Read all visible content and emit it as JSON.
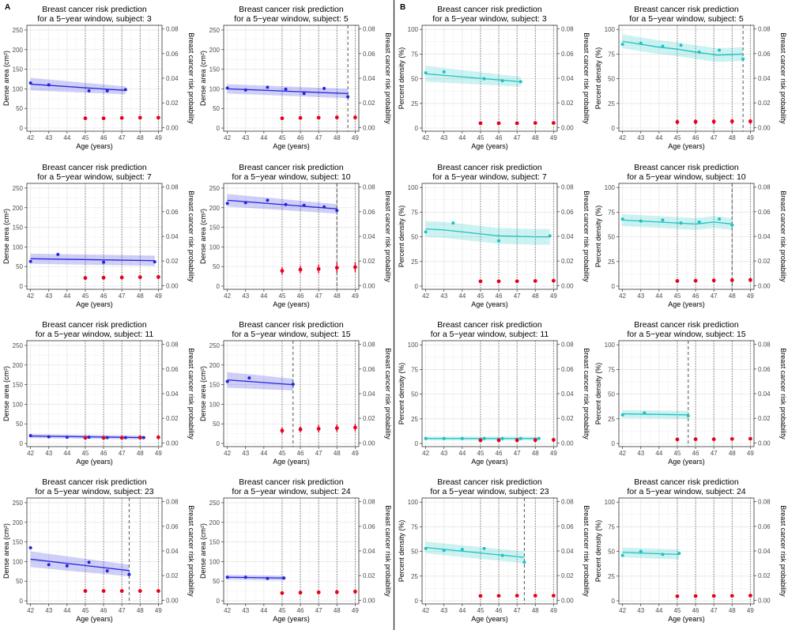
{
  "panels": [
    "A",
    "B"
  ],
  "common": {
    "title_line1": "Breast cancer risk prediction",
    "xlabel": "Age (years)",
    "y2label": "Breast cancer risk probability",
    "xlim": [
      41.8,
      49.2
    ],
    "x_ticks": [
      42,
      43,
      44,
      45,
      46,
      47,
      48,
      49
    ],
    "y2lim": [
      -0.003,
      0.083
    ],
    "y2_ticks": [
      0.0,
      0.02,
      0.04,
      0.06,
      0.08
    ],
    "y2_tick_labels": [
      "0.00",
      "0.02",
      "0.04",
      "0.06",
      "0.08"
    ],
    "colors": {
      "dense": "#2424e0",
      "percent": "#1cc2c2",
      "risk": "#e8001c",
      "vline": "#555555"
    }
  },
  "chart_data": [
    {
      "type": "line",
      "panel": "A",
      "position": "row1-col1",
      "title": "Breast cancer risk prediction\nfor a 5−year window, subject: 3",
      "ylabel": "Dense area (cm²)",
      "ylim": [
        -8,
        262
      ],
      "y_ticks": [
        0,
        50,
        100,
        150,
        200,
        250
      ],
      "x_points": [
        42,
        43,
        45.2,
        46.2,
        47.2
      ],
      "y_points": [
        115,
        110,
        95,
        95,
        98
      ],
      "fit_x": [
        42,
        47.2
      ],
      "fit_y": [
        112,
        96
      ],
      "band_halfwidth": [
        16,
        10
      ],
      "risk_x": [
        45,
        46,
        47,
        48,
        49
      ],
      "risk_y": [
        0.0075,
        0.0075,
        0.0078,
        0.008,
        0.008
      ],
      "risk_err": [
        0.0015,
        0.0015,
        0.0015,
        0.0015,
        0.0015
      ],
      "dotted_lines": [
        45,
        46,
        47,
        48,
        49
      ],
      "dashed_line": null
    },
    {
      "type": "line",
      "panel": "A",
      "position": "row1-col2",
      "title": "Breast cancer risk prediction\nfor a 5−year window, subject: 5",
      "ylabel": "Dense area (cm²)",
      "ylim": [
        -8,
        262
      ],
      "y_ticks": [
        0,
        50,
        100,
        150,
        200,
        250
      ],
      "x_points": [
        42,
        43,
        44.2,
        45.2,
        46.2,
        47.3,
        48.6
      ],
      "y_points": [
        102,
        97,
        104,
        99,
        88,
        101,
        80
      ],
      "fit_x": [
        42,
        48.6
      ],
      "fit_y": [
        100,
        88
      ],
      "band_halfwidth": [
        12,
        12
      ],
      "risk_x": [
        45,
        46,
        47,
        48,
        49
      ],
      "risk_y": [
        0.0075,
        0.0078,
        0.008,
        0.0082,
        0.0082
      ],
      "risk_err": [
        0.0015,
        0.0015,
        0.0015,
        0.0015,
        0.0015
      ],
      "dotted_lines": [
        45,
        46,
        47,
        48,
        49
      ],
      "dashed_line": 48.6
    },
    {
      "type": "line",
      "panel": "A",
      "position": "row2-col1",
      "title": "Breast cancer risk prediction\nfor a 5−year window, subject: 7",
      "ylabel": "Dense area (cm²)",
      "ylim": [
        -8,
        262
      ],
      "y_ticks": [
        0,
        50,
        100,
        150,
        200,
        250
      ],
      "x_points": [
        42,
        43.5,
        46,
        48.8
      ],
      "y_points": [
        63,
        81,
        61,
        62
      ],
      "fit_x": [
        42,
        48.8
      ],
      "fit_y": [
        70,
        65
      ],
      "band_halfwidth": [
        13,
        13
      ],
      "risk_x": [
        45,
        46,
        47,
        48,
        49
      ],
      "risk_y": [
        0.0062,
        0.0064,
        0.0066,
        0.0068,
        0.007
      ],
      "risk_err": [
        0.0015,
        0.0015,
        0.0015,
        0.0015,
        0.0015
      ],
      "dotted_lines": [
        45,
        46,
        47,
        48,
        49
      ],
      "dashed_line": null
    },
    {
      "type": "line",
      "panel": "A",
      "position": "row2-col2",
      "title": "Breast cancer risk prediction\nfor a 5−year window, subject: 10",
      "ylabel": "Dense area (cm²)",
      "ylim": [
        -8,
        262
      ],
      "y_ticks": [
        0,
        50,
        100,
        150,
        200,
        250
      ],
      "x_points": [
        42,
        43,
        44.2,
        45.2,
        46.2,
        47.3,
        48
      ],
      "y_points": [
        211,
        213,
        219,
        208,
        206,
        202,
        193
      ],
      "fit_x": [
        42,
        48
      ],
      "fit_y": [
        219,
        197
      ],
      "band_halfwidth": [
        16,
        12
      ],
      "risk_x": [
        45,
        46,
        47,
        48,
        49
      ],
      "risk_y": [
        0.012,
        0.013,
        0.0135,
        0.0145,
        0.015
      ],
      "risk_err": [
        0.003,
        0.003,
        0.0035,
        0.004,
        0.004
      ],
      "dotted_lines": [
        45,
        46,
        47,
        48,
        49
      ],
      "dashed_line": 48
    },
    {
      "type": "line",
      "panel": "A",
      "position": "row3-col1",
      "title": "Breast cancer risk prediction\nfor a 5−year window, subject: 11",
      "ylabel": "Dense area (cm²)",
      "ylim": [
        -8,
        262
      ],
      "y_ticks": [
        0,
        50,
        100,
        150,
        200,
        250
      ],
      "x_points": [
        42,
        43,
        44,
        45.2,
        46.2,
        47.2,
        48.2
      ],
      "y_points": [
        20,
        17,
        16,
        16,
        15,
        15,
        15
      ],
      "fit_x": [
        42,
        48.2
      ],
      "fit_y": [
        19,
        15
      ],
      "band_halfwidth": [
        5,
        5
      ],
      "risk_x": [
        45,
        46,
        47,
        48,
        49
      ],
      "risk_y": [
        0.0042,
        0.0042,
        0.0042,
        0.0044,
        0.0046
      ],
      "risk_err": [
        0.0012,
        0.0012,
        0.0012,
        0.0012,
        0.0012
      ],
      "dotted_lines": [
        45,
        46,
        47,
        48,
        49
      ],
      "dashed_line": null
    },
    {
      "type": "line",
      "panel": "A",
      "position": "row3-col2",
      "title": "Breast cancer risk prediction\nfor a 5−year window, subject: 15",
      "ylabel": "Dense area (cm²)",
      "ylim": [
        -8,
        262
      ],
      "y_ticks": [
        0,
        50,
        100,
        150,
        200,
        250
      ],
      "x_points": [
        42,
        43.2,
        45.6
      ],
      "y_points": [
        158,
        167,
        151
      ],
      "fit_x": [
        42,
        45.6
      ],
      "fit_y": [
        162,
        150
      ],
      "band_halfwidth": [
        20,
        15
      ],
      "risk_x": [
        45,
        46,
        47,
        48,
        49
      ],
      "risk_y": [
        0.01,
        0.011,
        0.0115,
        0.012,
        0.0125
      ],
      "risk_err": [
        0.0025,
        0.0025,
        0.003,
        0.003,
        0.003
      ],
      "dotted_lines": [
        45,
        46,
        47,
        48,
        49
      ],
      "dashed_line": 45.6
    },
    {
      "type": "line",
      "panel": "A",
      "position": "row4-col1",
      "title": "Breast cancer risk prediction\nfor a 5−year window, subject: 23",
      "ylabel": "Dense area (cm²)",
      "ylim": [
        -8,
        262
      ],
      "y_ticks": [
        0,
        50,
        100,
        150,
        200,
        250
      ],
      "x_points": [
        42,
        43,
        44,
        45.2,
        46.2,
        47.4
      ],
      "y_points": [
        135,
        92,
        89,
        98,
        76,
        67
      ],
      "fit_x": [
        42,
        47.4
      ],
      "fit_y": [
        106,
        77
      ],
      "band_halfwidth": [
        20,
        15
      ],
      "risk_x": [
        45,
        46,
        47,
        48,
        49
      ],
      "risk_y": [
        0.0075,
        0.0075,
        0.0075,
        0.0075,
        0.0075
      ],
      "risk_err": [
        0.0015,
        0.0015,
        0.0015,
        0.0015,
        0.0015
      ],
      "dotted_lines": [
        45,
        46,
        47,
        48,
        49
      ],
      "dashed_line": 47.4
    },
    {
      "type": "line",
      "panel": "A",
      "position": "row4-col2",
      "title": "Breast cancer risk prediction\nfor a 5−year window, subject: 24",
      "ylabel": "Dense area (cm²)",
      "ylim": [
        -8,
        262
      ],
      "y_ticks": [
        0,
        50,
        100,
        150,
        200,
        250
      ],
      "x_points": [
        42,
        43,
        44.2,
        45.1
      ],
      "y_points": [
        60,
        60,
        57,
        58
      ],
      "fit_x": [
        42,
        45.1
      ],
      "fit_y": [
        60,
        58
      ],
      "band_halfwidth": [
        6,
        6
      ],
      "risk_x": [
        45,
        46,
        47,
        48,
        49
      ],
      "risk_y": [
        0.0058,
        0.0062,
        0.0064,
        0.0066,
        0.007
      ],
      "risk_err": [
        0.0015,
        0.0015,
        0.0015,
        0.0015,
        0.0015
      ],
      "dotted_lines": [
        45,
        46,
        47,
        48,
        49
      ],
      "dashed_line": null
    },
    {
      "type": "line",
      "panel": "B",
      "position": "row1-col1",
      "title": "Breast cancer risk prediction\nfor a 5−year window, subject: 3",
      "ylabel": "Percent density (%)",
      "ylim": [
        -3.2,
        104.2
      ],
      "y_ticks": [
        0,
        25,
        50,
        75,
        100
      ],
      "x_points": [
        42,
        43,
        45.2,
        46.2,
        47.2
      ],
      "y_points": [
        56,
        57,
        50,
        48,
        47
      ],
      "fit_x": [
        42,
        47.2
      ],
      "fit_y": [
        55,
        47
      ],
      "band_halfwidth": [
        8,
        5
      ],
      "risk_x": [
        45,
        46,
        47,
        48,
        49
      ],
      "risk_y": [
        0.0035,
        0.0035,
        0.0035,
        0.0037,
        0.0037
      ],
      "risk_err": [
        0.0012,
        0.0012,
        0.0012,
        0.0012,
        0.0012
      ],
      "dotted_lines": [
        45,
        46,
        47,
        48,
        49
      ],
      "dashed_line": null
    },
    {
      "type": "line",
      "panel": "B",
      "position": "row1-col2",
      "title": "Breast cancer risk prediction\nfor a 5−year window, subject: 5",
      "ylabel": "Percent density (%)",
      "ylim": [
        -3.2,
        104.2
      ],
      "y_ticks": [
        0,
        25,
        50,
        75,
        100
      ],
      "x_points": [
        42,
        43,
        44.2,
        45.2,
        46.2,
        47.3,
        48.6
      ],
      "y_points": [
        85,
        86,
        83,
        84,
        77,
        79,
        70
      ],
      "fit_x": [
        42,
        43,
        44,
        45,
        46,
        47.2,
        48.6
      ],
      "fit_y": [
        88,
        85,
        82,
        80,
        77,
        74,
        75
      ],
      "band_halfwidth": [
        7,
        7
      ],
      "risk_x": [
        45,
        46,
        47,
        48,
        49
      ],
      "risk_y": [
        0.0045,
        0.0047,
        0.0048,
        0.005,
        0.005
      ],
      "risk_err": [
        0.002,
        0.002,
        0.002,
        0.002,
        0.002
      ],
      "dotted_lines": [
        45,
        46,
        47,
        48,
        49
      ],
      "dashed_line": 48.6
    },
    {
      "type": "line",
      "panel": "B",
      "position": "row2-col1",
      "title": "Breast cancer risk prediction\nfor a 5−year window, subject: 7",
      "ylabel": "Percent density (%)",
      "ylim": [
        -3.2,
        104.2
      ],
      "y_ticks": [
        0,
        25,
        50,
        75,
        100
      ],
      "x_points": [
        42,
        43.5,
        46,
        48.8
      ],
      "y_points": [
        55,
        64,
        46,
        51
      ],
      "fit_x": [
        42,
        43,
        44,
        45,
        46,
        47,
        48,
        48.8
      ],
      "fit_y": [
        58,
        57,
        55,
        53,
        51,
        50.5,
        50,
        50
      ],
      "band_halfwidth": [
        8,
        8
      ],
      "risk_x": [
        45,
        46,
        47,
        48,
        49
      ],
      "risk_y": [
        0.0035,
        0.0035,
        0.0036,
        0.0038,
        0.004
      ],
      "risk_err": [
        0.0012,
        0.0012,
        0.0012,
        0.0012,
        0.0012
      ],
      "dotted_lines": [
        45,
        46,
        47,
        48,
        49
      ],
      "dashed_line": null
    },
    {
      "type": "line",
      "panel": "B",
      "position": "row2-col2",
      "title": "Breast cancer risk prediction\nfor a 5−year window, subject: 10",
      "ylabel": "Percent density (%)",
      "ylim": [
        -3.2,
        104.2
      ],
      "y_ticks": [
        0,
        25,
        50,
        75,
        100
      ],
      "x_points": [
        42,
        43,
        44.2,
        45.2,
        46.2,
        47.3,
        48
      ],
      "y_points": [
        68,
        66,
        67,
        64,
        65,
        68,
        62
      ],
      "fit_x": [
        42,
        43,
        44,
        45,
        46,
        47,
        48
      ],
      "fit_y": [
        67,
        66,
        65,
        64,
        63,
        65,
        63
      ],
      "band_halfwidth": [
        6,
        6
      ],
      "risk_x": [
        45,
        46,
        47,
        48,
        49
      ],
      "risk_y": [
        0.0038,
        0.004,
        0.0042,
        0.0044,
        0.0046
      ],
      "risk_err": [
        0.0015,
        0.0015,
        0.0015,
        0.0015,
        0.0015
      ],
      "dotted_lines": [
        45,
        46,
        47,
        48,
        49
      ],
      "dashed_line": 48
    },
    {
      "type": "line",
      "panel": "B",
      "position": "row3-col1",
      "title": "Breast cancer risk prediction\nfor a 5−year window, subject: 11",
      "ylabel": "Percent density (%)",
      "ylim": [
        -3.2,
        104.2
      ],
      "y_ticks": [
        0,
        25,
        50,
        75,
        100
      ],
      "x_points": [
        42,
        43,
        44,
        45.2,
        46.2,
        47.2,
        48.2
      ],
      "y_points": [
        5,
        5,
        5,
        5,
        5,
        5,
        5
      ],
      "fit_x": [
        42,
        48.2
      ],
      "fit_y": [
        5,
        5
      ],
      "band_halfwidth": [
        2,
        2
      ],
      "risk_x": [
        45,
        46,
        47,
        48,
        49
      ],
      "risk_y": [
        0.0022,
        0.0022,
        0.0022,
        0.0023,
        0.0025
      ],
      "risk_err": [
        0.0012,
        0.0012,
        0.0012,
        0.0012,
        0.0012
      ],
      "dotted_lines": [
        45,
        46,
        47,
        48,
        49
      ],
      "dashed_line": null
    },
    {
      "type": "line",
      "panel": "B",
      "position": "row3-col2",
      "title": "Breast cancer risk prediction\nfor a 5−year window, subject: 15",
      "ylabel": "Percent density (%)",
      "ylim": [
        -3.2,
        104.2
      ],
      "y_ticks": [
        0,
        25,
        50,
        75,
        100
      ],
      "x_points": [
        42,
        43.2,
        45.6
      ],
      "y_points": [
        29,
        31,
        28
      ],
      "fit_x": [
        42,
        45.6
      ],
      "fit_y": [
        30,
        29
      ],
      "band_halfwidth": [
        4,
        4
      ],
      "risk_x": [
        45,
        46,
        47,
        48,
        49
      ],
      "risk_y": [
        0.0028,
        0.003,
        0.003,
        0.0032,
        0.0034
      ],
      "risk_err": [
        0.001,
        0.001,
        0.001,
        0.001,
        0.001
      ],
      "dotted_lines": [
        45,
        46,
        47,
        48,
        49
      ],
      "dashed_line": 45.6
    },
    {
      "type": "line",
      "panel": "B",
      "position": "row4-col1",
      "title": "Breast cancer risk prediction\nfor a 5−year window, subject: 23",
      "ylabel": "Percent density (%)",
      "ylim": [
        -3.2,
        104.2
      ],
      "y_ticks": [
        0,
        25,
        50,
        75,
        100
      ],
      "x_points": [
        42,
        43,
        44,
        45.2,
        46.2,
        47.4
      ],
      "y_points": [
        53,
        51,
        52,
        53,
        46,
        39
      ],
      "fit_x": [
        42,
        47.4
      ],
      "fit_y": [
        54,
        44
      ],
      "band_halfwidth": [
        6,
        6
      ],
      "risk_x": [
        45,
        46,
        47,
        48,
        49
      ],
      "risk_y": [
        0.0035,
        0.0036,
        0.0037,
        0.0037,
        0.0037
      ],
      "risk_err": [
        0.0012,
        0.0012,
        0.0012,
        0.0012,
        0.0012
      ],
      "dotted_lines": [
        45,
        46,
        47,
        48,
        49
      ],
      "dashed_line": 47.4
    },
    {
      "type": "line",
      "panel": "B",
      "position": "row4-col2",
      "title": "Breast cancer risk prediction\nfor a 5−year window, subject: 24",
      "ylabel": "Percent density (%)",
      "ylim": [
        -3.2,
        104.2
      ],
      "y_ticks": [
        0,
        25,
        50,
        75,
        100
      ],
      "x_points": [
        42,
        43,
        44.2,
        45.1
      ],
      "y_points": [
        46,
        50,
        47,
        48
      ],
      "fit_x": [
        42,
        45.1
      ],
      "fit_y": [
        49,
        47
      ],
      "band_halfwidth": [
        5,
        5
      ],
      "risk_x": [
        45,
        46,
        47,
        48,
        49
      ],
      "risk_y": [
        0.0032,
        0.0034,
        0.0035,
        0.0036,
        0.0038
      ],
      "risk_err": [
        0.0012,
        0.0012,
        0.0012,
        0.0012,
        0.0012
      ],
      "dotted_lines": [
        45,
        46,
        47,
        48,
        49
      ],
      "dashed_line": null
    }
  ]
}
